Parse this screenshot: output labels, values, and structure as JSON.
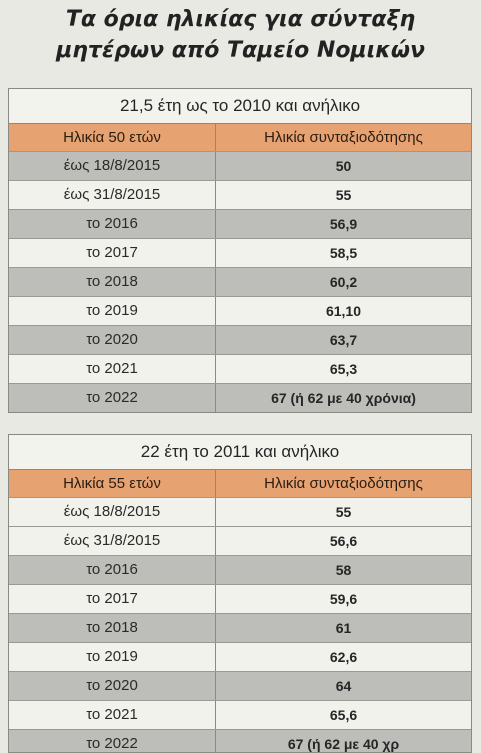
{
  "title": {
    "line1": "Τα όρια ηλικίας για σύνταξη",
    "line2": "μητέρων από Ταμείο Νομικών"
  },
  "table1": {
    "caption": "21,5 έτη ως το 2010 και ανήλικο",
    "headers": [
      "Ηλικία 50 ετών",
      "Ηλικία συνταξιοδότησης"
    ],
    "rows": [
      [
        "έως 18/8/2015",
        "50"
      ],
      [
        "έως 31/8/2015",
        "55"
      ],
      [
        "το 2016",
        "56,9"
      ],
      [
        "το 2017",
        "58,5"
      ],
      [
        "το 2018",
        "60,2"
      ],
      [
        "το 2019",
        "61,10"
      ],
      [
        "το 2020",
        "63,7"
      ],
      [
        "το 2021",
        "65,3"
      ],
      [
        "το 2022",
        "67 (ή 62 με 40 χρόνια)"
      ]
    ]
  },
  "table2": {
    "caption": "22 έτη το 2011 και ανήλικο",
    "headers": [
      "Ηλικία 55 ετών",
      "Ηλικία συνταξιοδότησης"
    ],
    "rows": [
      [
        "έως 18/8/2015",
        "55"
      ],
      [
        "έως 31/8/2015",
        "56,6"
      ],
      [
        "το 2016",
        "58"
      ],
      [
        "το 2017",
        "59,6"
      ],
      [
        "το 2018",
        "61"
      ],
      [
        "το 2019",
        "62,6"
      ],
      [
        "το 2020",
        "64"
      ],
      [
        "το 2021",
        "65,6"
      ],
      [
        "το 2022",
        "67 (ή 62 με 40 χρ"
      ]
    ]
  }
}
